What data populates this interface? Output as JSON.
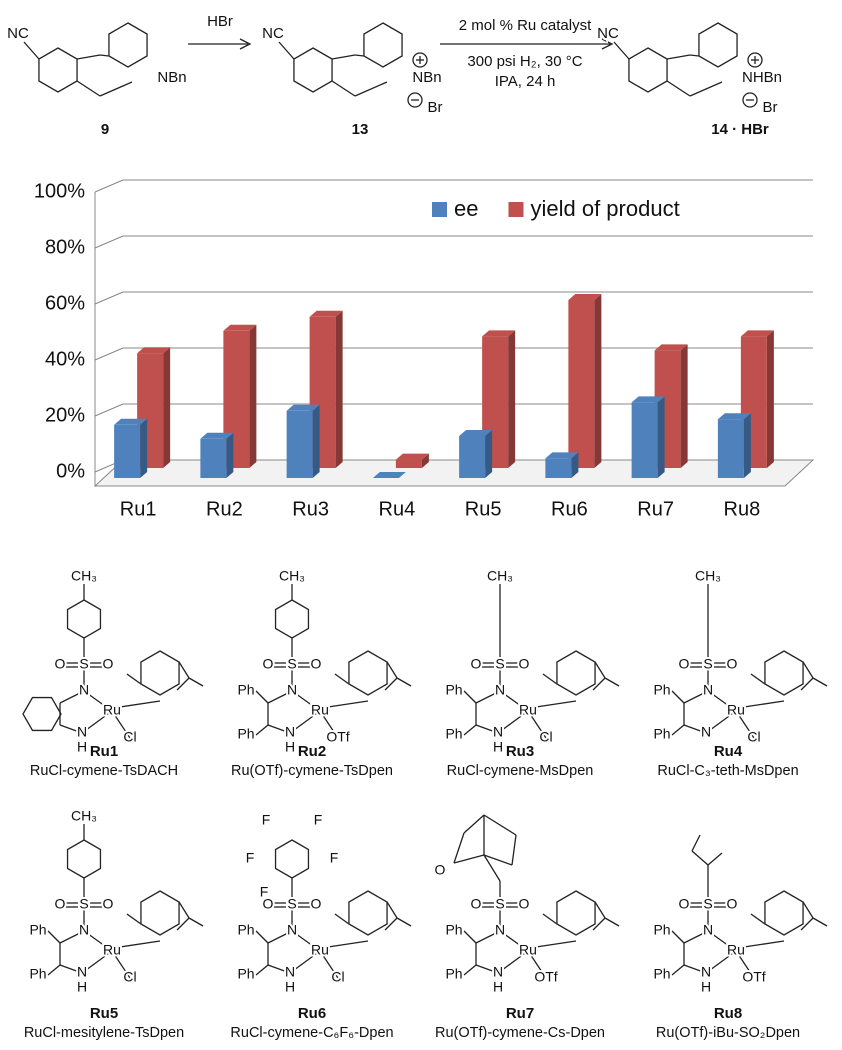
{
  "scheme": {
    "compounds": [
      {
        "label": "9",
        "atoms": [
          "NC",
          "NBn"
        ]
      },
      {
        "label": "13",
        "atoms": [
          "NC",
          "NBn",
          "Br"
        ]
      },
      {
        "label": "14 · HBr",
        "atoms": [
          "NC",
          "NHBn",
          "Br"
        ]
      }
    ],
    "step1": "HBr",
    "step2": [
      "2 mol % Ru catalyst",
      "300 psi H₂, 30 °C",
      "IPA, 24 h"
    ]
  },
  "chart_data": {
    "type": "bar",
    "categories": [
      "Ru1",
      "Ru2",
      "Ru3",
      "Ru4",
      "Ru5",
      "Ru6",
      "Ru7",
      "Ru8"
    ],
    "series": [
      {
        "name": "ee",
        "color": "#4f81bd",
        "values": [
          19,
          14,
          24,
          0,
          15,
          7,
          27,
          21
        ]
      },
      {
        "name": "yield of product",
        "color": "#c0504d",
        "values": [
          41,
          49,
          54,
          3,
          47,
          60,
          42,
          47
        ]
      }
    ],
    "ylim": [
      0,
      100
    ],
    "yticks": [
      {
        "value": 0,
        "label": "0%"
      },
      {
        "value": 20,
        "label": "20%"
      },
      {
        "value": 40,
        "label": "40%"
      },
      {
        "value": 60,
        "label": "60%"
      },
      {
        "value": 80,
        "label": "80%"
      },
      {
        "value": 100,
        "label": "100%"
      }
    ],
    "grid": true,
    "legend": "top-right"
  },
  "catalysts": [
    {
      "label": "Ru1",
      "name": "RuCl-cymene-TsDACH",
      "atoms": [
        "CH₃",
        "O",
        "S",
        "O",
        "N",
        "Ru",
        "N",
        "H",
        "Cl"
      ]
    },
    {
      "label": "Ru2",
      "name": "Ru(OTf)-cymene-TsDpen",
      "atoms": [
        "CH₃",
        "O",
        "S",
        "O",
        "Ph",
        "N",
        "Ru",
        "Ph",
        "N",
        "H",
        "OTf"
      ]
    },
    {
      "label": "Ru3",
      "name": "RuCl-cymene-MsDpen",
      "atoms": [
        "CH₃",
        "O",
        "S",
        "O",
        "Ph",
        "N",
        "Ru",
        "Ph",
        "N",
        "H",
        "Cl"
      ]
    },
    {
      "label": "Ru4",
      "name": "RuCl-C₃-teth-MsDpen",
      "atoms": [
        "CH₃",
        "O",
        "S",
        "O",
        "Ph",
        "N",
        "Ru",
        "Ph",
        "N",
        "Cl"
      ]
    },
    {
      "label": "Ru5",
      "name": "RuCl-mesitylene-TsDpen",
      "atoms": [
        "CH₃",
        "O",
        "S",
        "O",
        "Ph",
        "N",
        "Ru",
        "Ph",
        "N",
        "H",
        "Cl"
      ]
    },
    {
      "label": "Ru6",
      "name": "RuCl-cymene-C₆F₆-Dpen",
      "atoms": [
        "F",
        "F",
        "F",
        "F",
        "F",
        "O",
        "S",
        "O",
        "Ph",
        "N",
        "Ru",
        "Ph",
        "N",
        "H",
        "Cl"
      ]
    },
    {
      "label": "Ru7",
      "name": "Ru(OTf)-cymene-Cs-Dpen",
      "atoms": [
        "O",
        "O",
        "S",
        "O",
        "Ph",
        "N",
        "Ru",
        "Ph",
        "N",
        "H",
        "OTf"
      ]
    },
    {
      "label": "Ru8",
      "name": "Ru(OTf)-iBu-SO₂Dpen",
      "atoms": [
        "O",
        "S",
        "O",
        "Ph",
        "N",
        "Ru",
        "Ph",
        "N",
        "H",
        "OTf"
      ]
    }
  ]
}
